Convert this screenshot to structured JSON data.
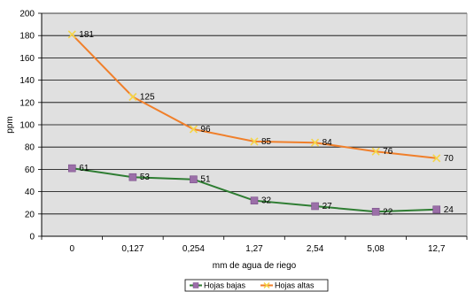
{
  "chart_data": {
    "type": "line",
    "categories": [
      "0",
      "0,127",
      "0,254",
      "1,27",
      "2,54",
      "5,08",
      "12,7"
    ],
    "series": [
      {
        "name": "Hojas bajas",
        "values": [
          61,
          53,
          51,
          32,
          27,
          22,
          24
        ],
        "color": "#2e7d32",
        "marker_color": "#9b6fa8",
        "marker": "square"
      },
      {
        "name": "Hojas altas",
        "values": [
          181,
          125,
          96,
          85,
          84,
          76,
          70
        ],
        "color": "#f07f2a",
        "marker_color": "#f5d547",
        "marker": "x"
      }
    ],
    "title": "",
    "xlabel": "mm de agua de riego",
    "ylabel": "ppm",
    "ylim": [
      0,
      200
    ],
    "yticks": [
      0,
      20,
      40,
      60,
      80,
      100,
      120,
      140,
      160,
      180,
      200
    ],
    "grid": true,
    "plot_background": "#e0e0e0",
    "legend_position": "bottom"
  }
}
